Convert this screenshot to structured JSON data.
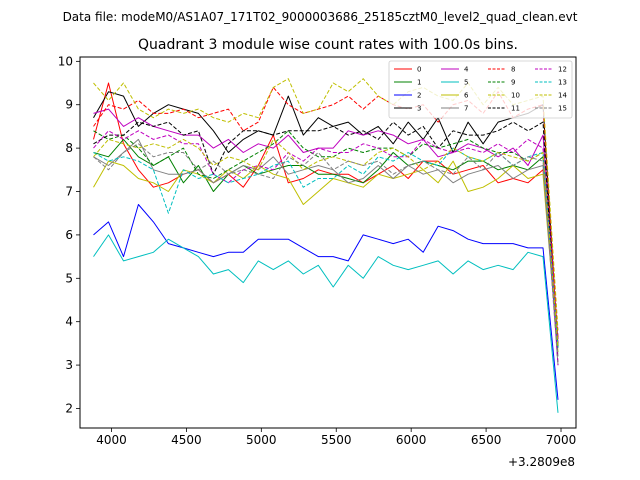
{
  "chart_data": {
    "type": "line",
    "suptitle": "Data file: modeM0/AS1A07_171T02_9000003686_25185cztM0_level2_quad_clean.evt",
    "title": "Quadrant 3 module wise count rates with 100.0s bins.",
    "xlabel": "",
    "ylabel": "",
    "x_offset_label": "+3.2809e8",
    "xlim": [
      3790,
      7100
    ],
    "ylim": [
      1.55,
      10.1
    ],
    "xticks": [
      4000,
      4500,
      5000,
      5500,
      6000,
      6500,
      7000
    ],
    "yticks": [
      2,
      3,
      4,
      5,
      6,
      7,
      8,
      9,
      10
    ],
    "x": [
      3880,
      3980,
      4080,
      4180,
      4280,
      4380,
      4480,
      4580,
      4680,
      4780,
      4880,
      4980,
      5080,
      5180,
      5280,
      5380,
      5480,
      5580,
      5680,
      5780,
      5880,
      5980,
      6080,
      6180,
      6280,
      6380,
      6480,
      6580,
      6680,
      6780,
      6880,
      6980
    ],
    "legend_position": "top-right",
    "series": [
      {
        "name": "0",
        "color": "#ff0000",
        "dash": "solid",
        "values": [
          8.2,
          9.5,
          8.1,
          7.5,
          7.1,
          7.2,
          7.4,
          7.5,
          7.2,
          7.4,
          7.1,
          7.6,
          8.3,
          7.2,
          7.3,
          7.5,
          7.4,
          7.4,
          7.2,
          7.4,
          7.6,
          7.3,
          7.7,
          7.7,
          7.4,
          7.5,
          7.6,
          7.2,
          7.3,
          7.2,
          7.5,
          3.5
        ]
      },
      {
        "name": "1",
        "color": "#008000",
        "dash": "solid",
        "values": [
          7.9,
          7.8,
          8.2,
          7.8,
          7.6,
          7.8,
          7.2,
          7.6,
          7.0,
          7.4,
          7.6,
          7.4,
          7.5,
          7.6,
          7.6,
          7.4,
          7.4,
          7.3,
          7.2,
          7.5,
          7.9,
          7.6,
          7.7,
          7.6,
          7.5,
          7.7,
          7.7,
          7.5,
          7.6,
          7.5,
          7.8,
          3.6
        ]
      },
      {
        "name": "2",
        "color": "#0000ff",
        "dash": "solid",
        "values": [
          6.0,
          6.3,
          5.5,
          6.7,
          6.3,
          5.8,
          5.7,
          5.6,
          5.5,
          5.6,
          5.6,
          5.9,
          5.9,
          5.9,
          5.7,
          5.5,
          5.5,
          5.4,
          6.0,
          5.9,
          5.8,
          5.9,
          5.6,
          6.2,
          6.1,
          5.9,
          5.8,
          5.8,
          5.8,
          5.7,
          5.7,
          2.2
        ]
      },
      {
        "name": "3",
        "color": "#000000",
        "dash": "solid",
        "values": [
          8.7,
          9.3,
          9.2,
          8.5,
          8.8,
          9.0,
          8.9,
          8.8,
          8.4,
          7.9,
          8.2,
          8.4,
          8.3,
          9.2,
          8.3,
          8.7,
          8.5,
          8.6,
          8.3,
          8.5,
          8.1,
          8.6,
          8.2,
          8.7,
          7.9,
          8.6,
          8.1,
          8.6,
          8.7,
          8.8,
          9.0,
          3.4
        ]
      },
      {
        "name": "4",
        "color": "#bf00bf",
        "dash": "solid",
        "values": [
          8.8,
          8.9,
          8.5,
          8.7,
          8.5,
          8.4,
          8.3,
          8.3,
          8.0,
          8.2,
          7.9,
          8.1,
          8.0,
          8.3,
          7.9,
          8.0,
          8.0,
          8.4,
          8.3,
          8.4,
          8.3,
          8.1,
          8.2,
          7.8,
          7.9,
          8.1,
          8.0,
          7.8,
          8.0,
          7.6,
          8.3,
          3.6
        ]
      },
      {
        "name": "5",
        "color": "#00bfbf",
        "dash": "solid",
        "values": [
          5.5,
          6.0,
          5.4,
          5.5,
          5.6,
          5.9,
          5.7,
          5.5,
          5.1,
          5.2,
          4.9,
          5.4,
          5.2,
          5.4,
          5.1,
          5.3,
          4.8,
          5.3,
          5.0,
          5.5,
          5.3,
          5.2,
          5.3,
          5.4,
          5.1,
          5.4,
          5.2,
          5.3,
          5.2,
          5.6,
          5.5,
          1.9
        ]
      },
      {
        "name": "6",
        "color": "#bfbf00",
        "dash": "solid",
        "values": [
          7.1,
          7.7,
          7.6,
          7.3,
          7.2,
          7.0,
          7.5,
          7.4,
          7.2,
          7.5,
          7.3,
          7.6,
          7.4,
          7.3,
          6.7,
          7.0,
          7.3,
          7.2,
          7.1,
          7.4,
          7.3,
          7.4,
          7.5,
          7.2,
          7.7,
          7.0,
          7.1,
          7.3,
          7.6,
          7.3,
          7.4,
          3.3
        ]
      },
      {
        "name": "7",
        "color": "#808080",
        "dash": "solid",
        "values": [
          7.8,
          7.6,
          7.9,
          8.2,
          7.5,
          7.4,
          7.4,
          7.5,
          7.2,
          7.4,
          7.6,
          7.5,
          7.8,
          7.4,
          7.5,
          7.6,
          7.5,
          7.2,
          7.3,
          7.6,
          7.3,
          7.6,
          7.4,
          7.5,
          7.2,
          7.4,
          7.5,
          7.6,
          7.3,
          7.5,
          7.6,
          3.2
        ]
      },
      {
        "name": "8",
        "color": "#ff0000",
        "dash": "dashed",
        "values": [
          8.5,
          9.0,
          8.9,
          9.1,
          8.8,
          8.8,
          8.9,
          8.7,
          8.8,
          8.9,
          8.4,
          8.6,
          9.4,
          9.0,
          8.8,
          8.9,
          9.0,
          9.2,
          8.9,
          9.2,
          9.0,
          8.9,
          9.0,
          8.6,
          9.0,
          9.1,
          8.8,
          9.3,
          8.7,
          8.9,
          9.0,
          3.6
        ]
      },
      {
        "name": "9",
        "color": "#008000",
        "dash": "dashed",
        "values": [
          8.4,
          8.2,
          8.3,
          8.0,
          7.6,
          7.8,
          8.0,
          7.4,
          7.3,
          7.5,
          7.7,
          7.9,
          8.1,
          8.4,
          8.0,
          7.8,
          7.8,
          8.0,
          7.9,
          8.0,
          8.0,
          7.8,
          8.1,
          8.0,
          8.1,
          8.2,
          8.0,
          7.9,
          7.9,
          7.7,
          7.9,
          3.4
        ]
      },
      {
        "name": "10",
        "color": "#bfbf00",
        "dash": "dashed",
        "values": [
          9.5,
          9.1,
          9.5,
          8.9,
          8.7,
          8.9,
          8.8,
          8.9,
          8.7,
          8.6,
          8.8,
          8.7,
          9.4,
          9.6,
          8.8,
          8.9,
          9.5,
          9.3,
          9.6,
          9.2,
          9.0,
          9.3,
          9.4,
          9.2,
          9.1,
          9.5,
          9.0,
          9.4,
          9.0,
          9.1,
          9.2,
          3.8
        ]
      },
      {
        "name": "11",
        "color": "#000000",
        "dash": "dashed",
        "values": [
          8.1,
          8.3,
          8.3,
          8.6,
          8.5,
          8.6,
          8.3,
          8.4,
          7.4,
          8.1,
          8.4,
          8.4,
          8.3,
          8.4,
          8.4,
          8.4,
          8.5,
          8.3,
          8.4,
          8.2,
          8.6,
          8.3,
          8.5,
          8.0,
          8.4,
          8.3,
          8.3,
          8.4,
          8.6,
          8.4,
          8.6,
          3.0
        ]
      },
      {
        "name": "12",
        "color": "#bf00bf",
        "dash": "dashed",
        "values": [
          8.0,
          8.4,
          8.2,
          8.4,
          8.2,
          8.3,
          8.1,
          8.1,
          7.4,
          7.2,
          7.5,
          7.6,
          7.5,
          7.9,
          7.7,
          8.0,
          7.9,
          7.9,
          8.1,
          8.0,
          7.8,
          7.8,
          8.2,
          8.0,
          7.9,
          8.0,
          7.9,
          8.1,
          7.9,
          8.2,
          8.0,
          3.0
        ]
      },
      {
        "name": "13",
        "color": "#00bfbf",
        "dash": "dashed",
        "values": [
          7.9,
          7.7,
          7.8,
          7.7,
          7.5,
          6.5,
          7.5,
          7.3,
          7.4,
          7.2,
          7.3,
          7.4,
          7.6,
          7.7,
          7.1,
          7.3,
          7.3,
          7.6,
          7.4,
          7.8,
          7.7,
          7.9,
          7.7,
          7.6,
          8.0,
          7.8,
          7.7,
          7.9,
          7.6,
          7.8,
          7.9,
          3.4
        ]
      },
      {
        "name": "14",
        "color": "#bfbf00",
        "dash": "dashed",
        "values": [
          7.8,
          8.2,
          8.1,
          8.0,
          8.1,
          8.0,
          8.2,
          8.0,
          7.6,
          7.8,
          7.7,
          7.5,
          8.2,
          7.9,
          7.5,
          7.7,
          7.8,
          7.7,
          7.6,
          7.9,
          8.0,
          7.8,
          7.5,
          7.7,
          8.0,
          7.8,
          7.7,
          7.9,
          7.8,
          7.7,
          7.9,
          3.4
        ]
      },
      {
        "name": "15",
        "color": "#808080",
        "dash": "dashed",
        "values": [
          7.8,
          7.5,
          7.9,
          8.1,
          7.8,
          7.9,
          7.9,
          7.5,
          7.7,
          7.4,
          7.5,
          7.4,
          7.3,
          7.8,
          7.6,
          7.9,
          7.5,
          7.7,
          7.6,
          7.7,
          7.4,
          7.6,
          7.7,
          7.5,
          7.4,
          7.8,
          7.5,
          7.9,
          7.6,
          7.8,
          7.7,
          3.0
        ]
      }
    ]
  }
}
